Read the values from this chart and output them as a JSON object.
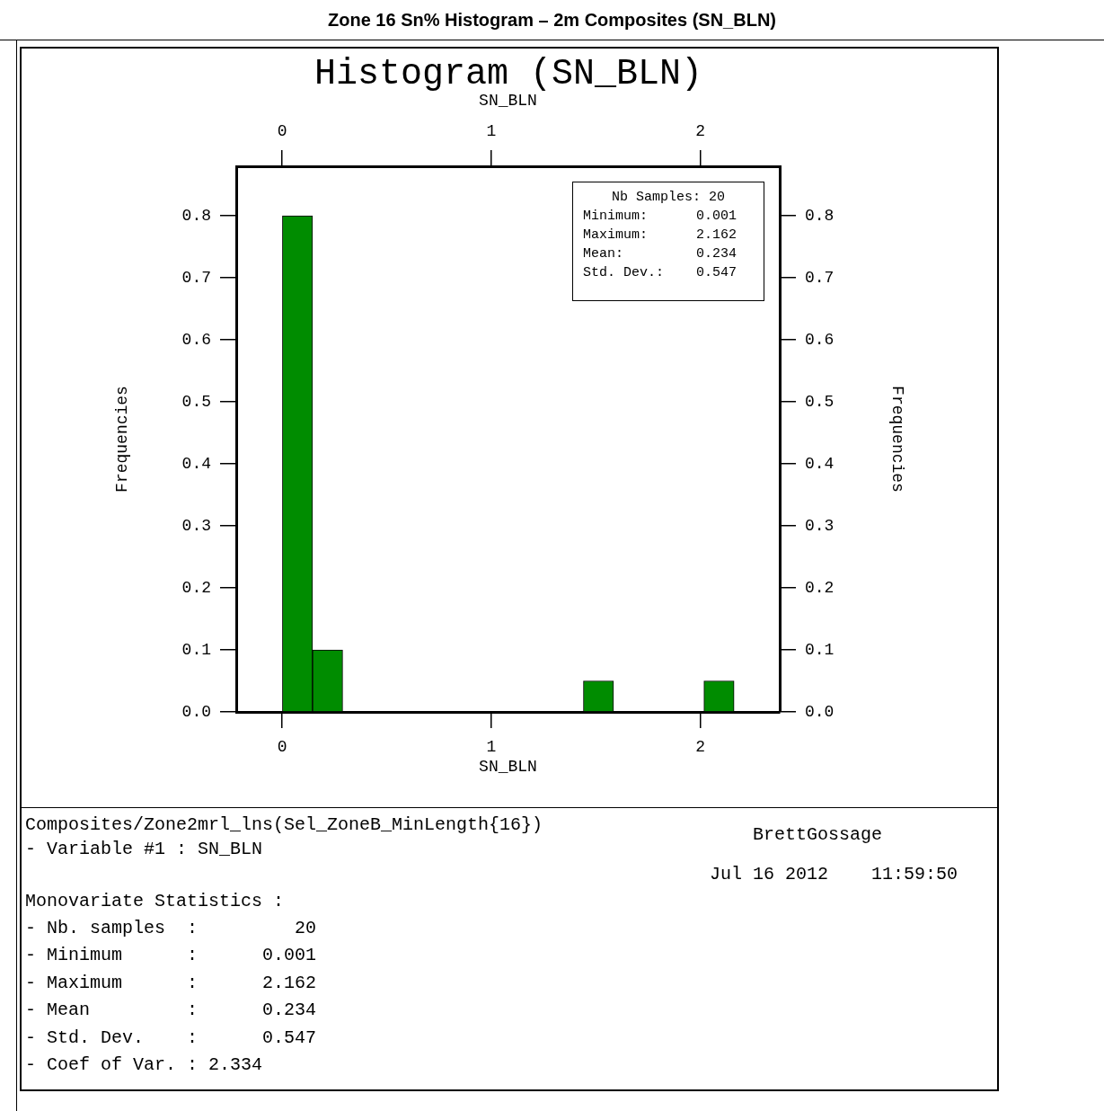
{
  "chart_data": {
    "type": "histogram",
    "title": "Zone 16 Sn% Histogram – 2m Composites (SN_BLN)",
    "subtitle": "Histogram (SN_BLN)",
    "xlabel": "SN_BLN",
    "x2label": "SN_BLN",
    "ylabel": "Frequencies",
    "y2label": "Frequencies",
    "bins": [
      0.001,
      0.145,
      0.289,
      0.433,
      0.577,
      0.721,
      0.865,
      1.009,
      1.153,
      1.297,
      1.441,
      1.585,
      1.729,
      1.873,
      2.017,
      2.162
    ],
    "values": [
      0.8,
      0.1,
      0,
      0,
      0,
      0,
      0,
      0,
      0,
      0,
      0.05,
      0,
      0,
      0,
      0.05
    ],
    "color": "#008c00",
    "xlim": [
      -0.22,
      2.38
    ],
    "xticks": [
      0,
      1,
      2
    ],
    "x2lim": [
      -0.22,
      2.38
    ],
    "x2ticks": [
      0,
      1,
      2
    ],
    "ylim": [
      0,
      0.88
    ],
    "yticks": [
      {
        "value": 0,
        "label": "0.0"
      },
      {
        "value": 0.1,
        "label": "0.1"
      },
      {
        "value": 0.2,
        "label": "0.2"
      },
      {
        "value": 0.3,
        "label": "0.3"
      },
      {
        "value": 0.4,
        "label": "0.4"
      },
      {
        "value": 0.5,
        "label": "0.5"
      },
      {
        "value": 0.6,
        "label": "0.6"
      },
      {
        "value": 0.7,
        "label": "0.7"
      },
      {
        "value": 0.8,
        "label": "0.8"
      }
    ],
    "y2lim": [
      0,
      0.88
    ],
    "y2ticks": [
      {
        "value": 0,
        "label": "0.0"
      },
      {
        "value": 0.1,
        "label": "0.1"
      },
      {
        "value": 0.2,
        "label": "0.2"
      },
      {
        "value": 0.3,
        "label": "0.3"
      },
      {
        "value": 0.4,
        "label": "0.4"
      },
      {
        "value": 0.5,
        "label": "0.5"
      },
      {
        "value": 0.6,
        "label": "0.6"
      },
      {
        "value": 0.7,
        "label": "0.7"
      },
      {
        "value": 0.8,
        "label": "0.8"
      }
    ],
    "grid": false,
    "legend": false,
    "annotations": [
      "Nb Samples: 20",
      "Minimum:      0.001",
      "Maximum:      2.162",
      "Mean:         0.234",
      "Std. Dev.:    0.547",
      "Composites/Zone2mrl_lns(Sel_ZoneB_MinLength{16})",
      "- Variable #1 : SN_BLN",
      "BrettGossage",
      "Jul 16 2012    11:59:50",
      "Monovariate Statistics :",
      "- Nb. samples  :         20",
      "- Minimum      :      0.001",
      "- Maximum      :      2.162",
      "- Mean         :      0.234",
      "- Std. Dev.    :      0.547",
      "- Coef of Var. : 2.334"
    ]
  }
}
